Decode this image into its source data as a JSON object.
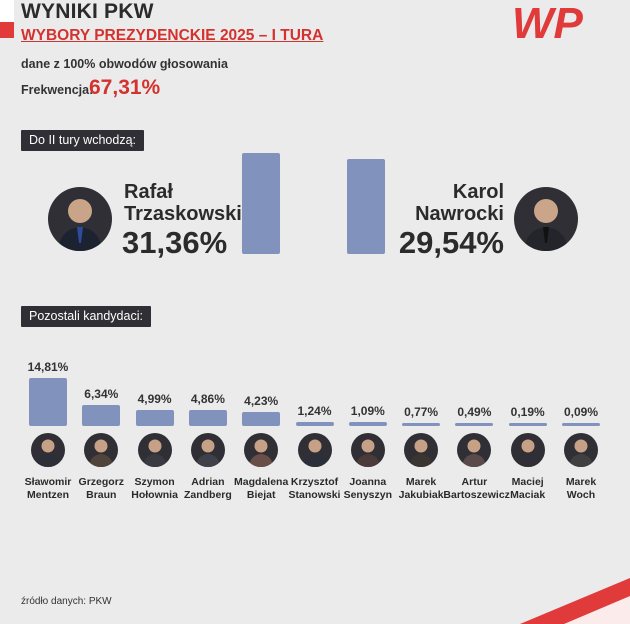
{
  "header": {
    "title": "WYNIKI PKW",
    "subtitle": "WYBORY PREZYDENCKIE 2025 – I TURA",
    "source_note": "dane z 100% obwodów głosowania",
    "turnout_label": "Frekwencja:",
    "turnout_value": "67,31%"
  },
  "logo": {
    "text": "WP",
    "color": "#e03a3a"
  },
  "colors": {
    "accent": "#d3322e",
    "bar": "#8193bd",
    "tag_bg": "#2f2f35",
    "background": "#ebebeb"
  },
  "runoff": {
    "label": "Do II tury wchodzą:",
    "left": {
      "first": "Rafał",
      "last": "Trzaskowski",
      "pct": "31,36%",
      "value": 31.36
    },
    "right": {
      "first": "Karol",
      "last": "Nawrocki",
      "pct": "29,54%",
      "value": 29.54
    }
  },
  "others": {
    "label": "Pozostali kandydaci:",
    "candidates": [
      {
        "first": "Sławomir",
        "last": "Mentzen",
        "pct": "14,81%",
        "value": 14.81
      },
      {
        "first": "Grzegorz",
        "last": "Braun",
        "pct": "6,34%",
        "value": 6.34
      },
      {
        "first": "Szymon",
        "last": "Hołownia",
        "pct": "4,99%",
        "value": 4.99
      },
      {
        "first": "Adrian",
        "last": "Zandberg",
        "pct": "4,86%",
        "value": 4.86
      },
      {
        "first": "Magdalena",
        "last": "Biejat",
        "pct": "4,23%",
        "value": 4.23
      },
      {
        "first": "Krzysztof",
        "last": "Stanowski",
        "pct": "1,24%",
        "value": 1.24
      },
      {
        "first": "Joanna",
        "last": "Senyszyn",
        "pct": "1,09%",
        "value": 1.09
      },
      {
        "first": "Marek",
        "last": "Jakubiak",
        "pct": "0,77%",
        "value": 0.77
      },
      {
        "first": "Artur",
        "last": "Bartoszewicz",
        "pct": "0,49%",
        "value": 0.49
      },
      {
        "first": "Maciej",
        "last": "Maciak",
        "pct": "0,19%",
        "value": 0.19
      },
      {
        "first": "Marek",
        "last": "Woch",
        "pct": "0,09%",
        "value": 0.09
      }
    ]
  },
  "footer": {
    "source": "źródło danych: PKW"
  },
  "chart_data": {
    "type": "bar",
    "title": "WYBORY PREZYDENCKIE 2025 – I TURA",
    "categories": [
      "Rafał Trzaskowski",
      "Karol Nawrocki",
      "Sławomir Mentzen",
      "Grzegorz Braun",
      "Szymon Hołownia",
      "Adrian Zandberg",
      "Magdalena Biejat",
      "Krzysztof Stanowski",
      "Joanna Senyszyn",
      "Marek Jakubiak",
      "Artur Bartoszewicz",
      "Maciej Maciak",
      "Marek Woch"
    ],
    "values": [
      31.36,
      29.54,
      14.81,
      6.34,
      4.99,
      4.86,
      4.23,
      1.24,
      1.09,
      0.77,
      0.49,
      0.19,
      0.09
    ],
    "unit": "%"
  }
}
